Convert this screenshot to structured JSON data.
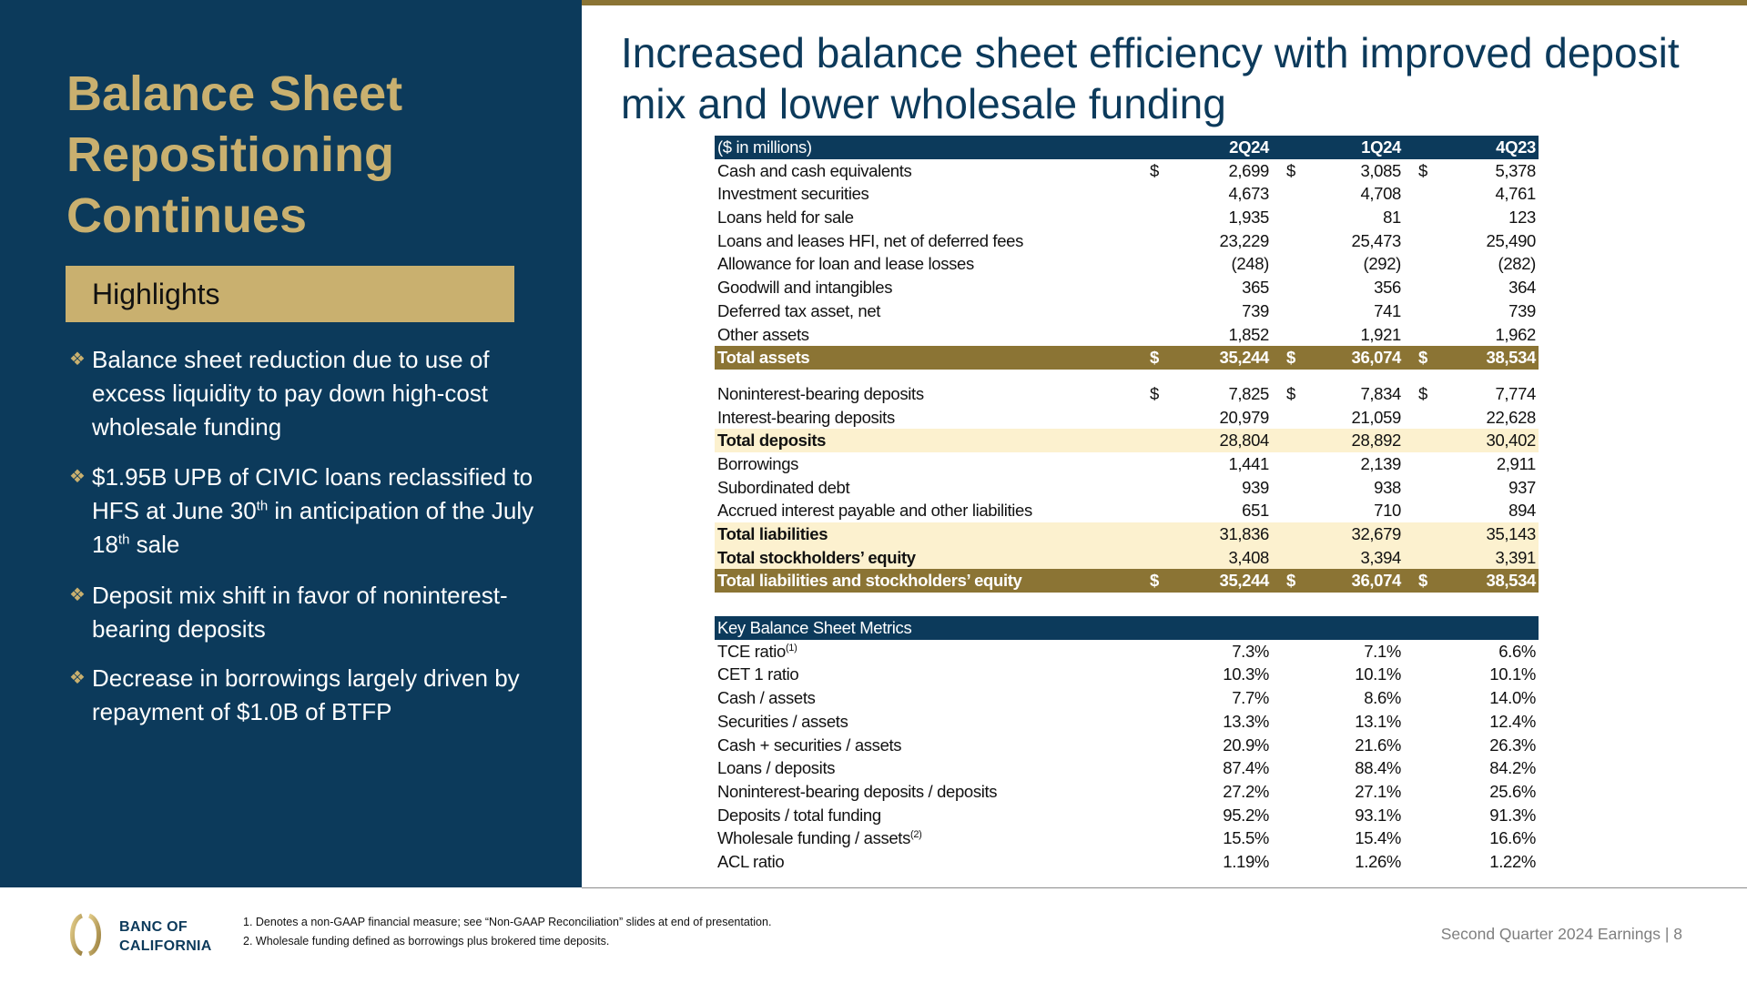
{
  "left_panel": {
    "title_lines": [
      "Balance Sheet",
      "Repositioning",
      "Continues"
    ],
    "highlights_label": "Highlights",
    "bullets": [
      [
        {
          "t": "Balance sheet reduction due to use of excess liquidity to pay down high-cost wholesale funding"
        }
      ],
      [
        {
          "t": "$1.95B UPB of CIVIC loans reclassified to HFS at June 30"
        },
        {
          "sup": "th"
        },
        {
          "t": " in anticipation of the July 18"
        },
        {
          "sup": "th"
        },
        {
          "t": " sale"
        }
      ],
      [
        {
          "t": "Deposit mix shift in favor of noninterest-bearing deposits"
        }
      ],
      [
        {
          "t": "Decrease in borrowings largely driven by repayment of $1.0B of BTFP"
        }
      ]
    ]
  },
  "main": {
    "title": "Increased balance sheet efficiency with improved deposit mix and lower wholesale funding"
  },
  "table": {
    "header": {
      "label": "($ in millions)",
      "cols": [
        "2Q24",
        "1Q24",
        "4Q23"
      ]
    },
    "assets": [
      {
        "label": "Cash and cash equivalents",
        "dollar": true,
        "values": [
          "2,699",
          "3,085",
          "5,378"
        ],
        "type": "normal"
      },
      {
        "label": "Investment securities",
        "values": [
          "4,673",
          "4,708",
          "4,761"
        ],
        "type": "normal"
      },
      {
        "label": "Loans held for sale",
        "values": [
          "1,935",
          "81",
          "123"
        ],
        "type": "normal"
      },
      {
        "label": "Loans and leases HFI, net of deferred fees",
        "values": [
          "23,229",
          "25,473",
          "25,490"
        ],
        "type": "normal"
      },
      {
        "label": "Allowance for loan and lease losses",
        "values": [
          "(248)",
          "(292)",
          "(282)"
        ],
        "type": "normal"
      },
      {
        "label": "Goodwill and intangibles",
        "values": [
          "365",
          "356",
          "364"
        ],
        "type": "normal"
      },
      {
        "label": "Deferred tax asset, net",
        "values": [
          "739",
          "741",
          "739"
        ],
        "type": "normal"
      },
      {
        "label": "Other assets",
        "values": [
          "1,852",
          "1,921",
          "1,962"
        ],
        "type": "normal"
      },
      {
        "label": "Total assets",
        "dollar": true,
        "values": [
          "35,244",
          "36,074",
          "38,534"
        ],
        "type": "total"
      }
    ],
    "liabilities": [
      {
        "label": "Noninterest-bearing deposits",
        "dollar": true,
        "values": [
          "7,825",
          "7,834",
          "7,774"
        ],
        "type": "normal"
      },
      {
        "label": "Interest-bearing deposits",
        "values": [
          "20,979",
          "21,059",
          "22,628"
        ],
        "type": "normal"
      },
      {
        "label": "Total deposits",
        "values": [
          "28,804",
          "28,892",
          "30,402"
        ],
        "type": "band"
      },
      {
        "label": "Borrowings",
        "values": [
          "1,441",
          "2,139",
          "2,911"
        ],
        "type": "normal"
      },
      {
        "label": "Subordinated debt",
        "values": [
          "939",
          "938",
          "937"
        ],
        "type": "normal"
      },
      {
        "label": "Accrued interest payable and other liabilities",
        "values": [
          "651",
          "710",
          "894"
        ],
        "type": "normal"
      },
      {
        "label": "Total liabilities",
        "values": [
          "31,836",
          "32,679",
          "35,143"
        ],
        "type": "band"
      },
      {
        "label": "Total stockholders’ equity",
        "values": [
          "3,408",
          "3,394",
          "3,391"
        ],
        "type": "band"
      },
      {
        "label": "Total liabilities and stockholders’ equity",
        "dollar": true,
        "values": [
          "35,244",
          "36,074",
          "38,534"
        ],
        "type": "total"
      }
    ],
    "currency_symbol": "$",
    "metrics_header": "Key Balance Sheet Metrics",
    "metrics": [
      {
        "label": "TCE ratio",
        "sup": "(1)",
        "values": [
          "7.3%",
          "7.1%",
          "6.6%"
        ]
      },
      {
        "label": "CET 1 ratio",
        "values": [
          "10.3%",
          "10.1%",
          "10.1%"
        ]
      },
      {
        "label": "Cash / assets",
        "values": [
          "7.7%",
          "8.6%",
          "14.0%"
        ]
      },
      {
        "label": "Securities / assets",
        "values": [
          "13.3%",
          "13.1%",
          "12.4%"
        ]
      },
      {
        "label": "Cash + securities / assets",
        "values": [
          "20.9%",
          "21.6%",
          "26.3%"
        ]
      },
      {
        "label": "Loans / deposits",
        "values": [
          "87.4%",
          "88.4%",
          "84.2%"
        ]
      },
      {
        "label": "Noninterest-bearing deposits / deposits",
        "values": [
          "27.2%",
          "27.1%",
          "25.6%"
        ]
      },
      {
        "label": "Deposits / total funding",
        "values": [
          "95.2%",
          "93.1%",
          "91.3%"
        ]
      },
      {
        "label": "Wholesale funding / assets",
        "sup": "(2)",
        "values": [
          "15.5%",
          "15.4%",
          "16.6%"
        ]
      },
      {
        "label": "ACL ratio",
        "values": [
          "1.19%",
          "1.26%",
          "1.22%"
        ]
      }
    ]
  },
  "footer": {
    "brand_line1": "BANC OF",
    "brand_line2": "CALIFORNIA",
    "footnotes": [
      "1.  Denotes a non-GAAP financial measure; see “Non-GAAP Reconciliation” slides at end of presentation.",
      "2.  Wholesale funding defined as borrowings plus brokered time deposits."
    ],
    "right_text": "Second Quarter 2024 Earnings |  8"
  },
  "colors": {
    "navy": "#0c3a5b",
    "gold": "#c9b06f",
    "olive": "#8b7434",
    "band": "#fcf1cf"
  }
}
